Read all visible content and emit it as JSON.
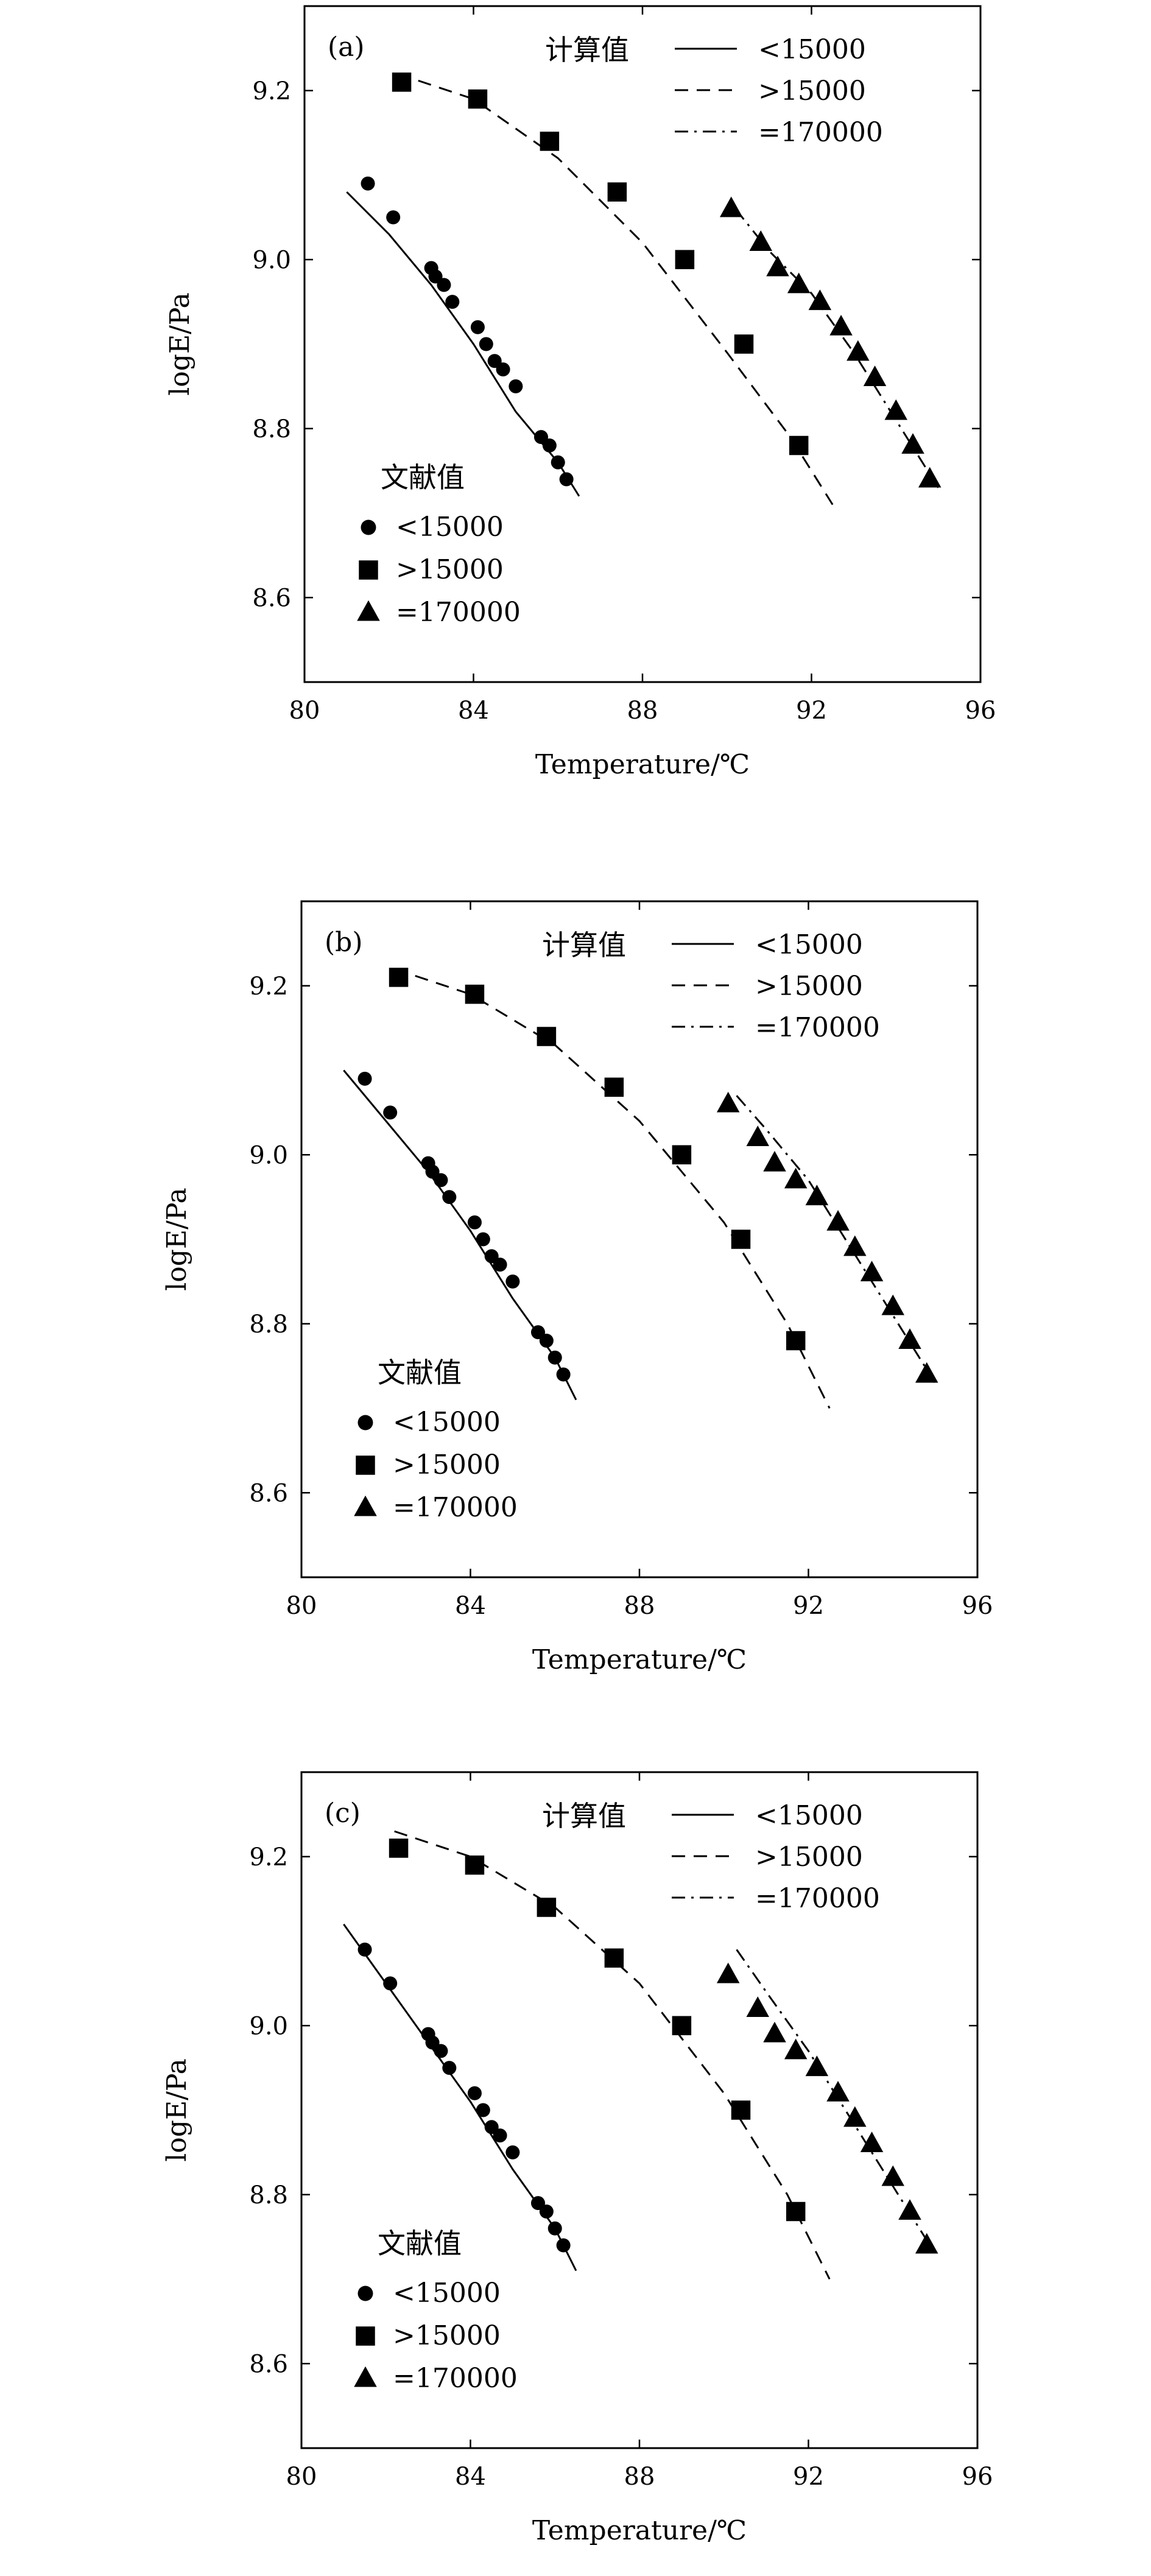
{
  "chart_data": [
    {
      "type": "scatter",
      "panel_label": "(a)",
      "xlabel": "Temperature/℃",
      "ylabel": "logE/Pa",
      "xlim": [
        80,
        96
      ],
      "ylim": [
        8.5,
        9.3
      ],
      "xticks": [
        80,
        84,
        88,
        92,
        96
      ],
      "yticks": [
        8.6,
        8.8,
        9.0,
        9.2
      ],
      "grid": false,
      "legend_calc": {
        "title": "计算值",
        "position": "top-right",
        "entries": [
          {
            "label": "<15000",
            "style": "solid"
          },
          {
            "label": ">15000",
            "style": "dashed"
          },
          {
            "label": "=170000",
            "style": "dashdot"
          }
        ]
      },
      "legend_lit": {
        "title": "文献值",
        "position": "bottom-left",
        "entries": [
          {
            "label": "<15000",
            "marker": "circle"
          },
          {
            "label": ">15000",
            "marker": "square"
          },
          {
            "label": "=170000",
            "marker": "triangle"
          }
        ]
      },
      "lines": [
        {
          "style": "solid",
          "x": [
            81.0,
            82.0,
            83.0,
            84.0,
            85.0,
            86.0,
            86.5
          ],
          "y": [
            9.08,
            9.03,
            8.97,
            8.9,
            8.82,
            8.76,
            8.72
          ]
        },
        {
          "style": "dashed",
          "x": [
            82.2,
            84.0,
            86.0,
            88.0,
            90.0,
            91.5,
            92.5
          ],
          "y": [
            9.22,
            9.19,
            9.12,
            9.02,
            8.89,
            8.79,
            8.71
          ]
        },
        {
          "style": "dashdot",
          "x": [
            90.2,
            91.0,
            92.0,
            93.0,
            94.0,
            95.0
          ],
          "y": [
            9.06,
            9.01,
            8.96,
            8.89,
            8.81,
            8.73
          ]
        }
      ],
      "points": [
        {
          "marker": "circle",
          "x": [
            81.5,
            82.1,
            83.0,
            83.1,
            83.3,
            83.5,
            84.1,
            84.3,
            84.5,
            84.7,
            85.0,
            85.6,
            85.8,
            86.0,
            86.2
          ],
          "y": [
            9.09,
            9.05,
            8.99,
            8.98,
            8.97,
            8.95,
            8.92,
            8.9,
            8.88,
            8.87,
            8.85,
            8.79,
            8.78,
            8.76,
            8.74
          ]
        },
        {
          "marker": "square",
          "x": [
            82.3,
            84.1,
            85.8,
            87.4,
            89.0,
            90.4,
            91.7
          ],
          "y": [
            9.21,
            9.19,
            9.14,
            9.08,
            9.0,
            8.9,
            8.78
          ]
        },
        {
          "marker": "triangle",
          "x": [
            90.1,
            90.8,
            91.2,
            91.7,
            92.2,
            92.7,
            93.1,
            93.5,
            94.0,
            94.4,
            94.8
          ],
          "y": [
            9.06,
            9.02,
            8.99,
            8.97,
            8.95,
            8.92,
            8.89,
            8.86,
            8.82,
            8.78,
            8.74
          ]
        }
      ]
    },
    {
      "type": "scatter",
      "panel_label": "(b)",
      "xlabel": "Temperature/℃",
      "ylabel": "logE/Pa",
      "xlim": [
        80,
        96
      ],
      "ylim": [
        8.5,
        9.3
      ],
      "xticks": [
        80,
        84,
        88,
        92,
        96
      ],
      "yticks": [
        8.6,
        8.8,
        9.0,
        9.2
      ],
      "grid": false,
      "legend_calc": {
        "title": "计算值",
        "position": "top-right",
        "entries": [
          {
            "label": "<15000",
            "style": "solid"
          },
          {
            "label": ">15000",
            "style": "dashed"
          },
          {
            "label": "=170000",
            "style": "dashdot"
          }
        ]
      },
      "legend_lit": {
        "title": "文献值",
        "position": "bottom-left",
        "entries": [
          {
            "label": "<15000",
            "marker": "circle"
          },
          {
            "label": ">15000",
            "marker": "square"
          },
          {
            "label": "=170000",
            "marker": "triangle"
          }
        ]
      },
      "lines": [
        {
          "style": "solid",
          "x": [
            81.0,
            82.0,
            83.0,
            84.0,
            85.0,
            86.0,
            86.5
          ],
          "y": [
            9.1,
            9.04,
            8.98,
            8.91,
            8.83,
            8.76,
            8.71
          ]
        },
        {
          "style": "dashed",
          "x": [
            82.2,
            84.0,
            86.0,
            88.0,
            90.0,
            91.5,
            92.5
          ],
          "y": [
            9.22,
            9.19,
            9.13,
            9.04,
            8.92,
            8.8,
            8.7
          ]
        },
        {
          "style": "dashdot",
          "x": [
            90.3,
            91.0,
            92.0,
            93.0,
            94.0,
            95.0
          ],
          "y": [
            9.07,
            9.03,
            8.97,
            8.89,
            8.81,
            8.73
          ]
        }
      ],
      "points": [
        {
          "marker": "circle",
          "x": [
            81.5,
            82.1,
            83.0,
            83.1,
            83.3,
            83.5,
            84.1,
            84.3,
            84.5,
            84.7,
            85.0,
            85.6,
            85.8,
            86.0,
            86.2
          ],
          "y": [
            9.09,
            9.05,
            8.99,
            8.98,
            8.97,
            8.95,
            8.92,
            8.9,
            8.88,
            8.87,
            8.85,
            8.79,
            8.78,
            8.76,
            8.74
          ]
        },
        {
          "marker": "square",
          "x": [
            82.3,
            84.1,
            85.8,
            87.4,
            89.0,
            90.4,
            91.7
          ],
          "y": [
            9.21,
            9.19,
            9.14,
            9.08,
            9.0,
            8.9,
            8.78
          ]
        },
        {
          "marker": "triangle",
          "x": [
            90.1,
            90.8,
            91.2,
            91.7,
            92.2,
            92.7,
            93.1,
            93.5,
            94.0,
            94.4,
            94.8
          ],
          "y": [
            9.06,
            9.02,
            8.99,
            8.97,
            8.95,
            8.92,
            8.89,
            8.86,
            8.82,
            8.78,
            8.74
          ]
        }
      ]
    },
    {
      "type": "scatter",
      "panel_label": "(c)",
      "xlabel": "Temperature/℃",
      "ylabel": "logE/Pa",
      "xlim": [
        80,
        96
      ],
      "ylim": [
        8.5,
        9.3
      ],
      "xticks": [
        80,
        84,
        88,
        92,
        96
      ],
      "yticks": [
        8.6,
        8.8,
        9.0,
        9.2
      ],
      "grid": false,
      "legend_calc": {
        "title": "计算值",
        "position": "top-right",
        "entries": [
          {
            "label": "<15000",
            "style": "solid"
          },
          {
            "label": ">15000",
            "style": "dashed"
          },
          {
            "label": "=170000",
            "style": "dashdot"
          }
        ]
      },
      "legend_lit": {
        "title": "文献值",
        "position": "bottom-left",
        "entries": [
          {
            "label": "<15000",
            "marker": "circle"
          },
          {
            "label": ">15000",
            "marker": "square"
          },
          {
            "label": "=170000",
            "marker": "triangle"
          }
        ]
      },
      "lines": [
        {
          "style": "solid",
          "x": [
            81.0,
            82.0,
            83.0,
            84.0,
            85.0,
            86.0,
            86.5
          ],
          "y": [
            9.12,
            9.05,
            8.98,
            8.91,
            8.83,
            8.76,
            8.71
          ]
        },
        {
          "style": "dashed",
          "x": [
            82.2,
            84.0,
            86.0,
            88.0,
            90.0,
            91.5,
            92.5
          ],
          "y": [
            9.23,
            9.2,
            9.14,
            9.05,
            8.92,
            8.8,
            8.7
          ]
        },
        {
          "style": "dashdot",
          "x": [
            90.3,
            91.0,
            92.0,
            93.0,
            94.0,
            95.0
          ],
          "y": [
            9.09,
            9.04,
            8.97,
            8.89,
            8.81,
            8.73
          ]
        }
      ],
      "points": [
        {
          "marker": "circle",
          "x": [
            81.5,
            82.1,
            83.0,
            83.1,
            83.3,
            83.5,
            84.1,
            84.3,
            84.5,
            84.7,
            85.0,
            85.6,
            85.8,
            86.0,
            86.2
          ],
          "y": [
            9.09,
            9.05,
            8.99,
            8.98,
            8.97,
            8.95,
            8.92,
            8.9,
            8.88,
            8.87,
            8.85,
            8.79,
            8.78,
            8.76,
            8.74
          ]
        },
        {
          "marker": "square",
          "x": [
            82.3,
            84.1,
            85.8,
            87.4,
            89.0,
            90.4,
            91.7
          ],
          "y": [
            9.21,
            9.19,
            9.14,
            9.08,
            9.0,
            8.9,
            8.78
          ]
        },
        {
          "marker": "triangle",
          "x": [
            90.1,
            90.8,
            91.2,
            91.7,
            92.2,
            92.7,
            93.1,
            93.5,
            94.0,
            94.4,
            94.8
          ],
          "y": [
            9.06,
            9.02,
            8.99,
            8.97,
            8.95,
            8.92,
            8.89,
            8.86,
            8.82,
            8.78,
            8.74
          ]
        }
      ]
    }
  ]
}
